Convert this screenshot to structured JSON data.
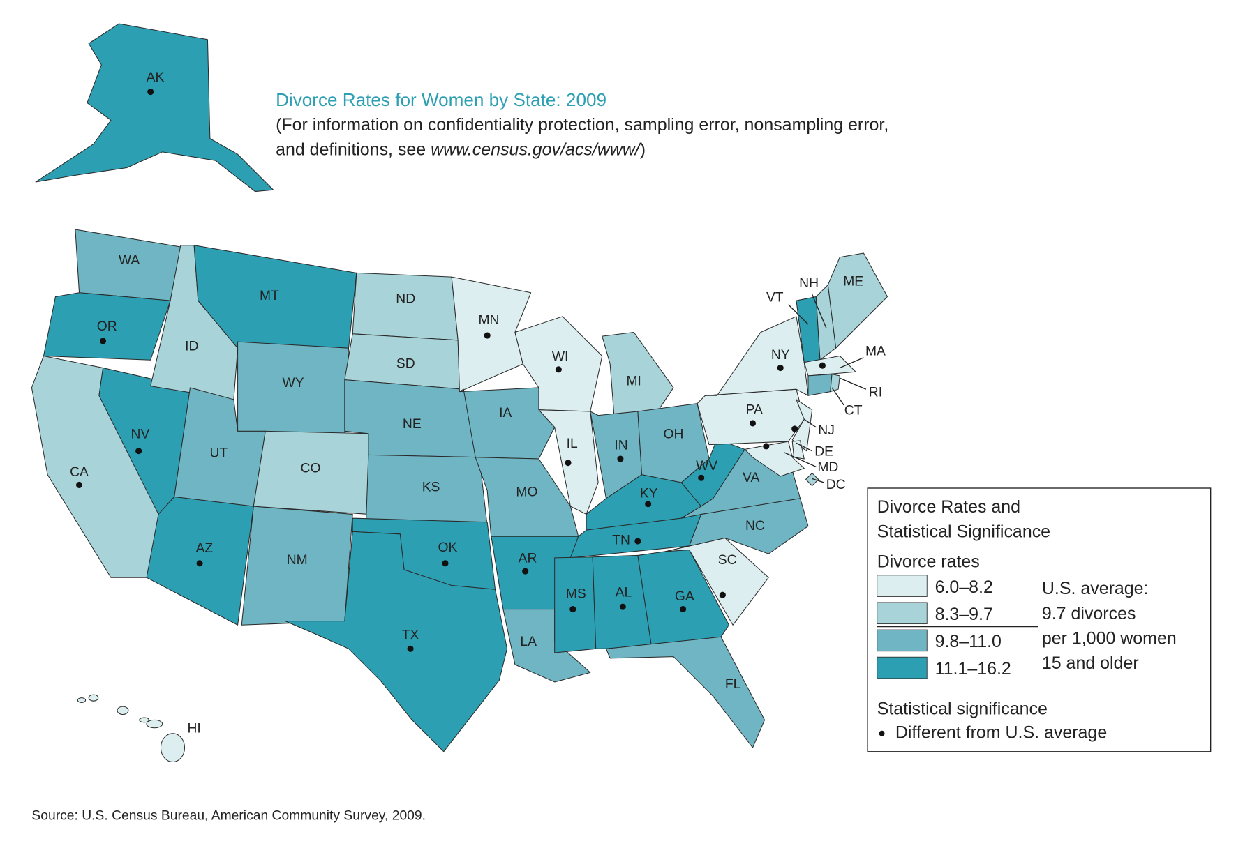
{
  "title": "Divorce Rates for Women by State: 2009",
  "subtitle": {
    "line1": "(For information on confidentiality protection, sampling error, nonsampling error,",
    "line2_prefix": "and definitions, see ",
    "line2_url": "www.census.gov/acs/www/",
    "line2_suffix": ")"
  },
  "states": [
    {
      "label": "AK",
      "color": "#2d9fb3",
      "significant": true
    },
    {
      "label": "WA",
      "color": "#6fb5c3",
      "significant": false
    },
    {
      "label": "OR",
      "color": "#2d9fb3",
      "significant": true
    },
    {
      "label": "CA",
      "color": "#a8d3d8",
      "significant": true
    },
    {
      "label": "NV",
      "color": "#2d9fb3",
      "significant": true
    },
    {
      "label": "ID",
      "color": "#a8d3d8",
      "significant": false
    },
    {
      "label": "MT",
      "color": "#2d9fb3",
      "significant": false
    },
    {
      "label": "WY",
      "color": "#6fb5c3",
      "significant": false
    },
    {
      "label": "UT",
      "color": "#6fb5c3",
      "significant": false
    },
    {
      "label": "CO",
      "color": "#a8d3d8",
      "significant": false
    },
    {
      "label": "AZ",
      "color": "#2d9fb3",
      "significant": true
    },
    {
      "label": "NM",
      "color": "#6fb5c3",
      "significant": false
    },
    {
      "label": "ND",
      "color": "#a8d3d8",
      "significant": false
    },
    {
      "label": "SD",
      "color": "#a8d3d8",
      "significant": false
    },
    {
      "label": "NE",
      "color": "#6fb5c3",
      "significant": false
    },
    {
      "label": "KS",
      "color": "#6fb5c3",
      "significant": false
    },
    {
      "label": "OK",
      "color": "#2d9fb3",
      "significant": true
    },
    {
      "label": "TX",
      "color": "#2d9fb3",
      "significant": true
    },
    {
      "label": "MN",
      "color": "#dceef0",
      "significant": true
    },
    {
      "label": "IA",
      "color": "#6fb5c3",
      "significant": false
    },
    {
      "label": "MO",
      "color": "#6fb5c3",
      "significant": false
    },
    {
      "label": "AR",
      "color": "#2d9fb3",
      "significant": true
    },
    {
      "label": "LA",
      "color": "#6fb5c3",
      "significant": false
    },
    {
      "label": "WI",
      "color": "#dceef0",
      "significant": true
    },
    {
      "label": "IL",
      "color": "#dceef0",
      "significant": true
    },
    {
      "label": "MI",
      "color": "#a8d3d8",
      "significant": false
    },
    {
      "label": "IN",
      "color": "#6fb5c3",
      "significant": true
    },
    {
      "label": "OH",
      "color": "#6fb5c3",
      "significant": false
    },
    {
      "label": "KY",
      "color": "#2d9fb3",
      "significant": true
    },
    {
      "label": "TN",
      "color": "#2d9fb3",
      "significant": true
    },
    {
      "label": "MS",
      "color": "#2d9fb3",
      "significant": true
    },
    {
      "label": "AL",
      "color": "#2d9fb3",
      "significant": true
    },
    {
      "label": "GA",
      "color": "#2d9fb3",
      "significant": true
    },
    {
      "label": "FL",
      "color": "#6fb5c3",
      "significant": false
    },
    {
      "label": "SC",
      "color": "#dceef0",
      "significant": true
    },
    {
      "label": "NC",
      "color": "#6fb5c3",
      "significant": false
    },
    {
      "label": "VA",
      "color": "#6fb5c3",
      "significant": false
    },
    {
      "label": "WV",
      "color": "#2d9fb3",
      "significant": true
    },
    {
      "label": "PA",
      "color": "#dceef0",
      "significant": true
    },
    {
      "label": "NY",
      "color": "#dceef0",
      "significant": true
    },
    {
      "label": "NJ",
      "color": "#dceef0",
      "significant": true
    },
    {
      "label": "DE",
      "color": "#dceef0",
      "significant": false
    },
    {
      "label": "MD",
      "color": "#dceef0",
      "significant": true
    },
    {
      "label": "DC",
      "color": "#a8d3d8",
      "significant": false
    },
    {
      "label": "VT",
      "color": "#2d9fb3",
      "significant": false
    },
    {
      "label": "NH",
      "color": "#a8d3d8",
      "significant": false
    },
    {
      "label": "ME",
      "color": "#a8d3d8",
      "significant": false
    },
    {
      "label": "MA",
      "color": "#dceef0",
      "significant": true
    },
    {
      "label": "CT",
      "color": "#6fb5c3",
      "significant": false
    },
    {
      "label": "RI",
      "color": "#a8d3d8",
      "significant": false
    },
    {
      "label": "HI",
      "color": "#dceef0",
      "significant": false
    }
  ],
  "legend": {
    "title": [
      "Divorce Rates and",
      "Statistical Significance"
    ],
    "rates_heading": "Divorce rates",
    "classes": [
      {
        "label": "6.0–8.2",
        "color": "#dceef0"
      },
      {
        "label": "8.3–9.7",
        "color": "#a8d3d8"
      },
      {
        "label": "9.8–11.0",
        "color": "#6fb5c3"
      },
      {
        "label": "11.1–16.2",
        "color": "#2d9fb3"
      }
    ],
    "average_note": [
      "U.S. average:",
      "9.7 divorces",
      "per 1,000 women",
      "15 and older"
    ],
    "significance_heading": "Statistical significance",
    "significance_label": "Different from U.S. average"
  },
  "source": "Source: U.S. Census Bureau, American Community Survey, 2009."
}
